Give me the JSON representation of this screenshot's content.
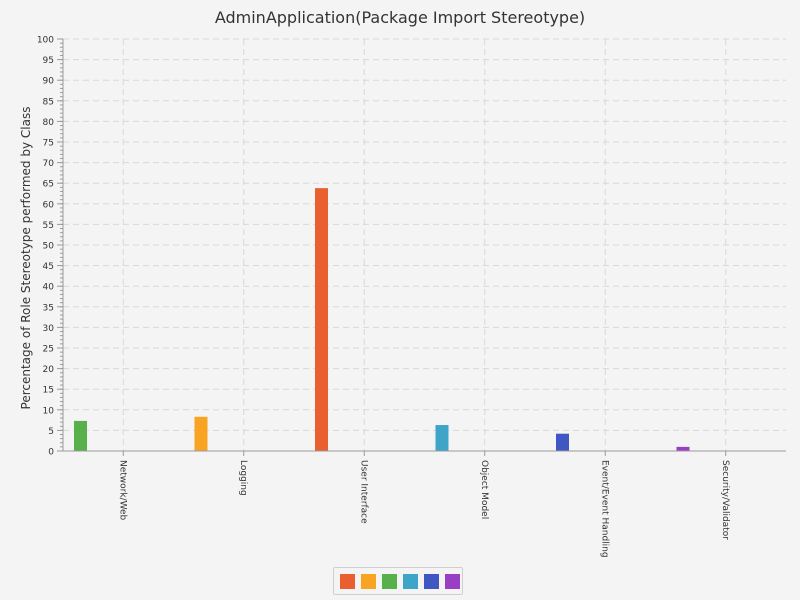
{
  "chart_data": {
    "type": "bar",
    "title": "AdminApplication(Package Import Stereotype)",
    "xlabel": "",
    "ylabel": "Percentage of Role Stereotype performed by Class",
    "ylim": [
      0,
      100
    ],
    "ytick_step": 5,
    "grid": true,
    "legend": "bottom-center",
    "categories": [
      "Network/Web",
      "Logging",
      "User Interface",
      "Object Model",
      "Event/Event Handling",
      "Security/Validator"
    ],
    "series": [
      {
        "color": "#ea5f2f",
        "values": [
          0,
          0,
          63.8,
          0,
          0,
          0
        ]
      },
      {
        "color": "#f8a321",
        "values": [
          0,
          8.3,
          0,
          0,
          0,
          0
        ]
      },
      {
        "color": "#58b04b",
        "values": [
          7.3,
          0,
          0,
          0,
          0,
          0
        ]
      },
      {
        "color": "#3ea4c8",
        "values": [
          0,
          0,
          0,
          6.3,
          0,
          0
        ]
      },
      {
        "color": "#3f57c2",
        "values": [
          0,
          0,
          0,
          0,
          4.2,
          0
        ]
      },
      {
        "color": "#9a3fc3",
        "values": [
          0,
          0,
          0,
          0,
          0,
          1.0
        ]
      }
    ]
  }
}
